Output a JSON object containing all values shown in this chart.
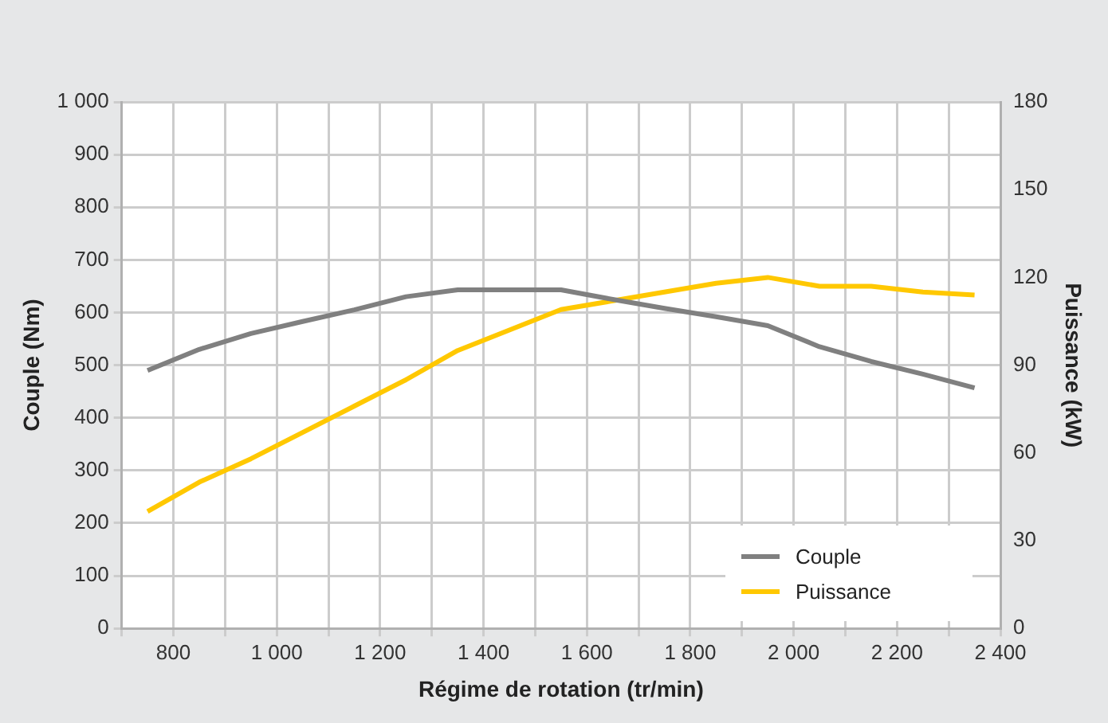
{
  "chart_data": {
    "type": "line",
    "xlabel": "Régime de rotation (tr/min)",
    "ylabel": "Couple (Nm)",
    "y2label": "Puissance (kW)",
    "x": [
      750,
      850,
      950,
      1050,
      1150,
      1250,
      1350,
      1450,
      1550,
      1650,
      1750,
      1850,
      1950,
      2050,
      2150,
      2250,
      2350
    ],
    "series": [
      {
        "name": "Couple",
        "color": "#808080",
        "values": [
          490,
          530,
          560,
          583,
          605,
          630,
          643,
          643,
          643,
          625,
          608,
          592,
          575,
          535,
          507,
          483,
          457
        ]
      },
      {
        "name": "Puissance",
        "color": "#ffc800",
        "axis": "y2",
        "values": [
          40,
          50,
          58,
          67,
          76,
          85,
          95,
          102,
          109,
          112,
          115,
          118,
          120,
          117,
          117,
          115,
          114
        ]
      }
    ],
    "xlim": [
      700,
      2400
    ],
    "xticks": [
      {
        "value": 700,
        "label": null
      },
      800,
      {
        "value": 900,
        "label": null
      },
      {
        "value": 1000,
        "label": "1 000"
      },
      {
        "value": 1100,
        "label": null
      },
      {
        "value": 1200,
        "label": "1 200"
      },
      {
        "value": 1300,
        "label": null
      },
      {
        "value": 1400,
        "label": "1 400"
      },
      {
        "value": 1500,
        "label": null
      },
      {
        "value": 1600,
        "label": "1 600"
      },
      {
        "value": 1700,
        "label": null
      },
      {
        "value": 1800,
        "label": "1 800"
      },
      {
        "value": 1900,
        "label": null
      },
      {
        "value": 2000,
        "label": "2 000"
      },
      {
        "value": 2100,
        "label": null
      },
      {
        "value": 2200,
        "label": "2 200"
      },
      {
        "value": 2300,
        "label": null
      },
      {
        "value": 2400,
        "label": "2 400"
      }
    ],
    "ylim": [
      0,
      1000
    ],
    "yticks": [
      0,
      100,
      200,
      300,
      400,
      500,
      600,
      700,
      800,
      900,
      {
        "value": 1000,
        "label": "1 000"
      }
    ],
    "y2lim": [
      0,
      180
    ],
    "y2ticks": [
      0,
      30,
      60,
      90,
      120,
      150,
      180
    ],
    "grid": true,
    "legend": "bottom right",
    "marker": "none",
    "line_style": "solid"
  }
}
